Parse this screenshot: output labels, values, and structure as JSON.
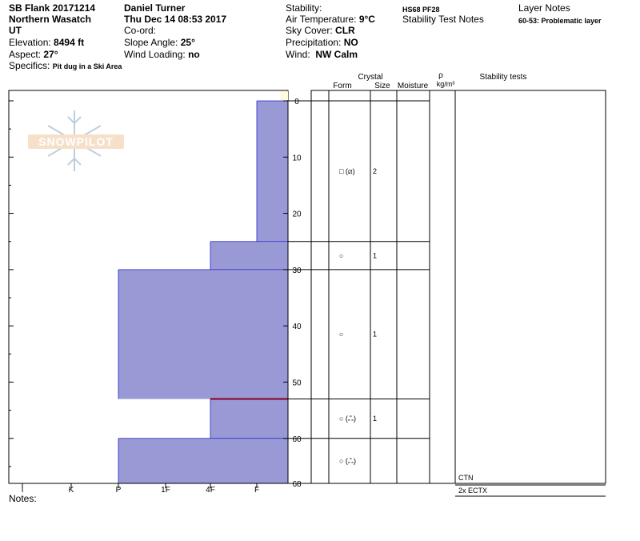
{
  "header": {
    "pit_name": "SB Flank 20171214",
    "region": "Northern Wasatch",
    "state": "UT",
    "elevation_label": "Elevation:",
    "elevation_value": "8494 ft",
    "aspect_label": "Aspect:",
    "aspect_value": "27°",
    "specifics_label": "Specifics:",
    "specifics_value": "Pit dug in a Ski Area",
    "observer": "Daniel Turner",
    "datetime": "Thu Dec 14 08:53 2017",
    "coord_label": "Co-ord:",
    "slope_label": "Slope Angle:",
    "slope_value": "25°",
    "wind_loading_label": "Wind Loading:",
    "wind_loading_value": "no",
    "stability_label": "Stability:",
    "air_temp_label": "Air Temperature:",
    "air_temp_value": "9°C",
    "sky_label": "Sky Cover:",
    "sky_value": "CLR",
    "precip_label": "Precipitation:",
    "precip_value": "NO",
    "wind_label": "Wind:",
    "wind_value": "NW Calm",
    "hs_pf": "HS68  PF28",
    "stability_test_notes_label": "Stability Test Notes",
    "layer_notes_label": "Layer Notes",
    "layer_note": "60-53: Problematic layer"
  },
  "logo_text": "SNOWPILOT",
  "notes_label": "Notes:",
  "colors": {
    "bar_fill": "#9999d6",
    "bar_edge": "#2222cc",
    "problem_layer": "#880022"
  },
  "chart_data": {
    "type": "bar",
    "x_ticks": [
      "I",
      "K",
      "P",
      "1F",
      "4F",
      "F"
    ],
    "y_ticks": [
      0,
      10,
      20,
      30,
      40,
      50,
      60,
      68
    ],
    "ylim": [
      0,
      68
    ],
    "hardness_profile": [
      {
        "from": 0,
        "to": 25,
        "hardness": "F"
      },
      {
        "from": 25,
        "to": 30,
        "hardness": "4F"
      },
      {
        "from": 30,
        "to": 53,
        "hardness": "P"
      },
      {
        "from": 53,
        "to": 60,
        "hardness": "4F"
      },
      {
        "from": 60,
        "to": 68,
        "hardness": "P"
      }
    ],
    "problematic_boundary": 53,
    "table_headers": {
      "crystal": "Crystal",
      "form": "Form",
      "size": "Size",
      "moisture": "Moisture",
      "rho": "ρ",
      "rho_unit": "kg/m³",
      "stability_tests": "Stability tests"
    },
    "layer_boundaries": [
      0,
      25,
      30,
      53,
      60,
      68
    ],
    "layers": [
      {
        "depth": 12.5,
        "form": "□ (⧄)",
        "size": "2"
      },
      {
        "depth": 27.5,
        "form": "○",
        "size": "1"
      },
      {
        "depth": 41.5,
        "form": "○",
        "size": "1"
      },
      {
        "depth": 56.5,
        "form": "○ (ஃ)",
        "size": "1"
      },
      {
        "depth": 64,
        "form": "○ (ஃ)",
        "size": ""
      }
    ],
    "stability_tests": [
      "CTN",
      "2x ECTX"
    ]
  }
}
